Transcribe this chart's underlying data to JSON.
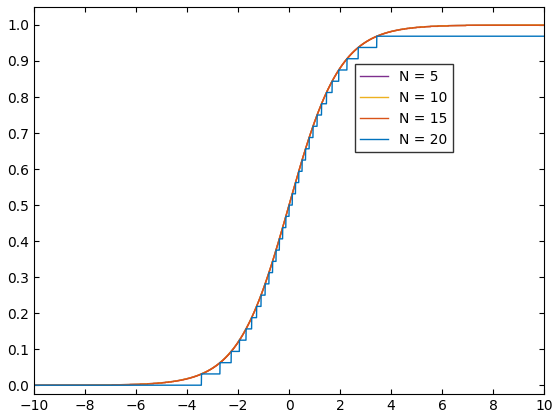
{
  "title": "",
  "xlim": [
    -10,
    10
  ],
  "ylim": [
    -0.025,
    1.05
  ],
  "xticks": [
    -10,
    -8,
    -6,
    -4,
    -2,
    0,
    2,
    4,
    6,
    8,
    10
  ],
  "yticks": [
    0.0,
    0.1,
    0.2,
    0.3,
    0.4,
    0.5,
    0.6,
    0.7,
    0.8,
    0.9,
    1.0
  ],
  "legend_labels": [
    "N = 5",
    "N = 10",
    "N = 15",
    "N = 20"
  ],
  "line_colors": [
    "#0072BD",
    "#D95319",
    "#EDB120",
    "#7E2F8E"
  ],
  "N_values": [
    5,
    10,
    15,
    20
  ],
  "figsize": [
    5.6,
    4.2
  ],
  "dpi": 100
}
